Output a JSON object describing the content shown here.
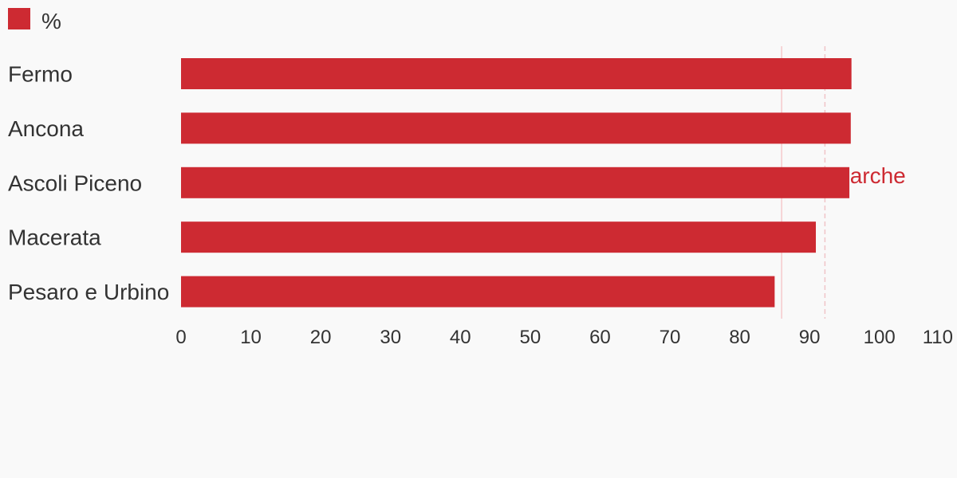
{
  "chart_data": {
    "type": "bar",
    "orientation": "horizontal",
    "categories": [
      "Fermo",
      "Ancona",
      "Ascoli Piceno",
      "Macerata",
      "Pesaro e Urbino"
    ],
    "series": [
      {
        "name": "%",
        "color": "#cd2a32",
        "values": [
          96,
          95.9,
          95.7,
          90.9,
          85
        ]
      }
    ],
    "xlim": [
      0,
      110
    ],
    "xticks": [
      0,
      10,
      20,
      30,
      40,
      50,
      60,
      70,
      80,
      90,
      100,
      110
    ],
    "reference_lines": [
      {
        "value": 86,
        "color": "#f5c9cc",
        "style": "solid",
        "label": ""
      },
      {
        "value": 92.2,
        "color": "#f0c4c8",
        "style": "dashed",
        "label": "Marche",
        "label_color": "#cd2a32"
      }
    ],
    "legend": {
      "position": "top-left"
    },
    "grid": false,
    "title": "",
    "xlabel": "",
    "ylabel": ""
  }
}
